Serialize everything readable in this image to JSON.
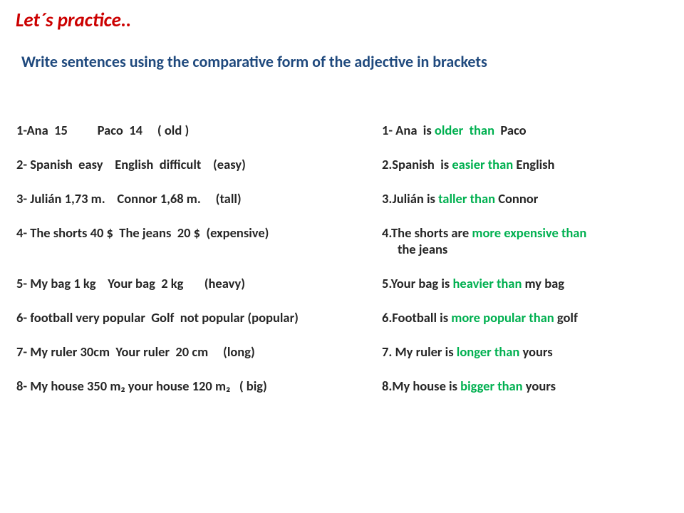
{
  "title": "Let´s practice..",
  "instruction": "Write sentences using the comparative form of the adjective in brackets",
  "rows": [
    {
      "prompt": "1-Ana  15          Paco  14     ( old )",
      "answer_prefix": "1- Ana  is ",
      "answer_highlight": "older  than",
      "answer_suffix": "  Paco"
    },
    {
      "prompt": "2- Spanish  easy    English  difficult    (easy)",
      "answer_prefix": "2.Spanish  is ",
      "answer_highlight": "easier than",
      "answer_suffix": " English"
    },
    {
      "prompt": "3- Julián 1,73 m.    Connor 1,68 m.     (tall)",
      "answer_prefix": "3.Julián is ",
      "answer_highlight": "taller than",
      "answer_suffix": " Connor"
    },
    {
      "prompt": "4- The shorts 40 $  The jeans  20 $  (expensive)",
      "answer_prefix": "4.The shorts are ",
      "answer_highlight": "more expensive than",
      "answer_suffix": "",
      "answer_line2": "the jeans"
    },
    {
      "prompt": "5- My bag 1 kg    Your bag  2 kg       (heavy)",
      "answer_prefix": "5.Your bag is ",
      "answer_highlight": "heavier than",
      "answer_suffix": " my bag"
    },
    {
      "prompt": "6- football very popular  Golf  not popular (popular)",
      "answer_prefix": "6.Football is ",
      "answer_highlight": "more popular than",
      "answer_suffix": " golf"
    },
    {
      "prompt": "7- My ruler 30cm  Your ruler  20 cm     (long)",
      "answer_prefix": "7. My ruler is ",
      "answer_highlight": "longer than",
      "answer_suffix": " yours"
    },
    {
      "prompt": "8- My house 350 m₂ your house 120 m₂   ( big)",
      "answer_prefix": "8.My house is ",
      "answer_highlight": "bigger than",
      "answer_suffix": " yours"
    }
  ],
  "colors": {
    "title": "#cc0000",
    "instruction": "#1f497d",
    "body_text": "#262626",
    "highlight": "#00b050",
    "background": "#ffffff"
  },
  "typography": {
    "title_fontsize": 27,
    "instruction_fontsize": 22,
    "body_fontsize": 18.5,
    "font_family": "Calibri"
  }
}
